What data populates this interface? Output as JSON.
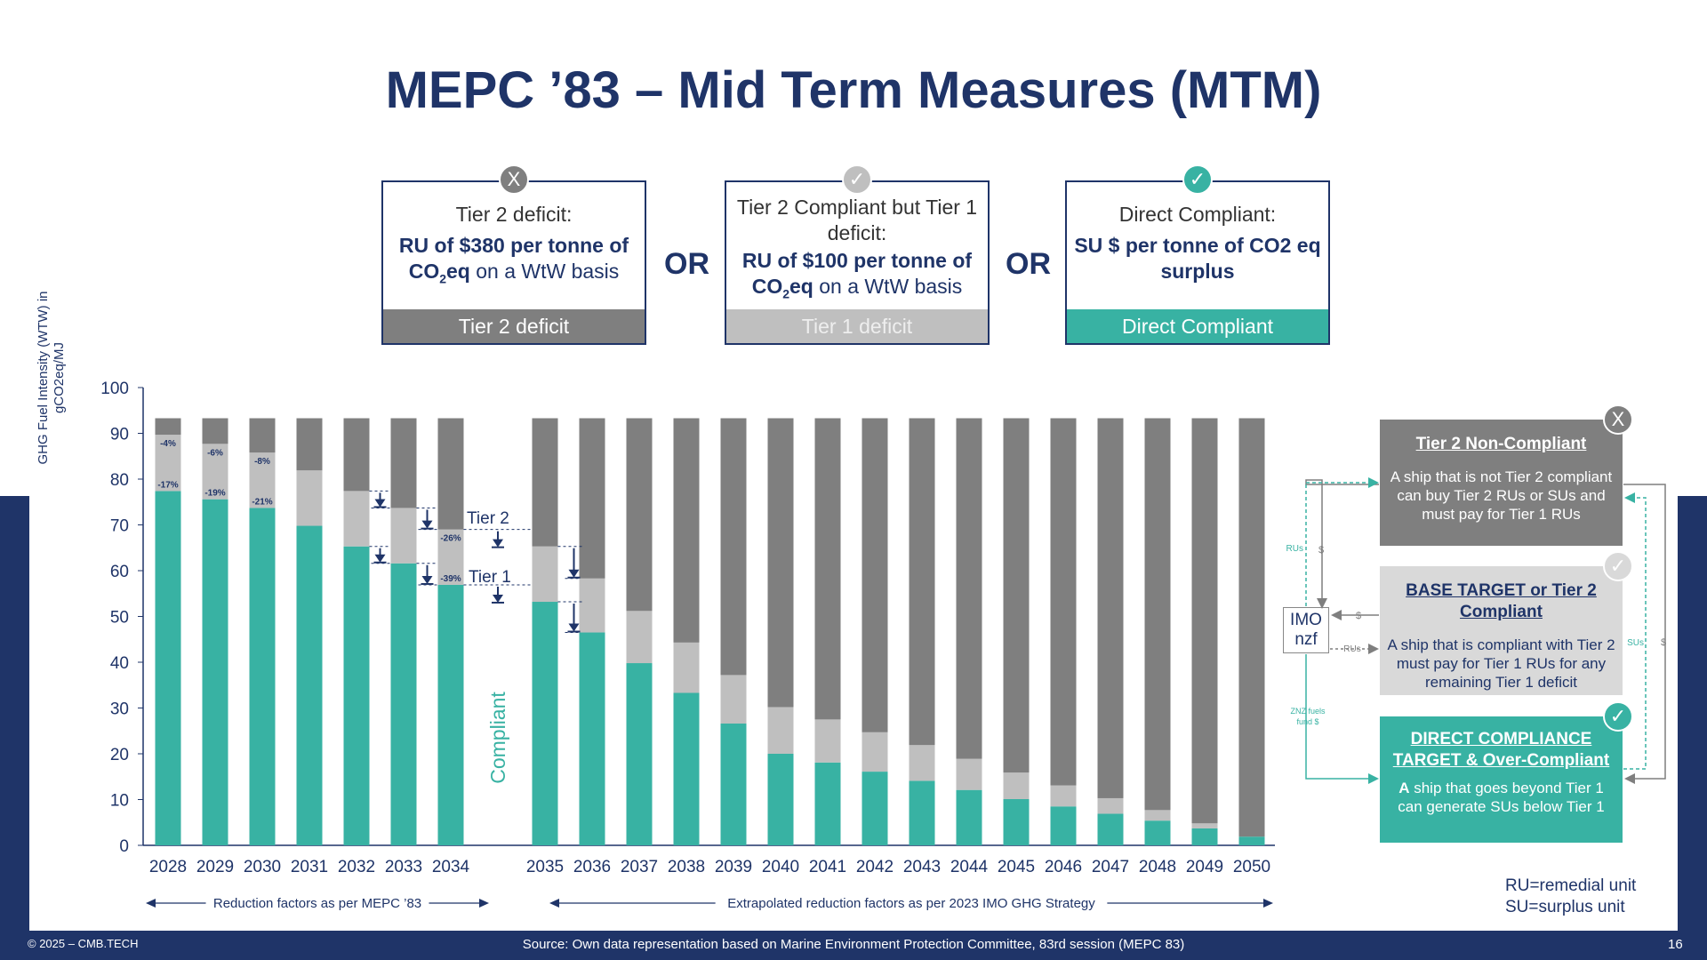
{
  "title": "MEPC ’83 – Mid Term Measures (MTM)",
  "colors": {
    "navy": "#1f3468",
    "teal": "#38b2a3",
    "light_grey": "#bfbfbf",
    "dark_grey": "#7f7f7f"
  },
  "options": [
    {
      "badge": "X",
      "head": "Tier 2 deficit:",
      "body_bold": "RU of $380 per tonne of CO",
      "body_sub": "2",
      "body_bold2": "eq",
      "body_rest": " on a WtW basis",
      "footer": "Tier 2 deficit"
    },
    {
      "badge": "✓",
      "head": "Tier 2 Compliant but Tier 1 deficit:",
      "body_bold": "RU of $100 per tonne of CO",
      "body_sub": "2",
      "body_bold2": "eq",
      "body_rest": " on a WtW basis",
      "footer": "Tier 1 deficit"
    },
    {
      "badge": "✓",
      "head": "Direct Compliant:",
      "body_bold": "SU $ per tonne of CO2 eq surplus",
      "body_sub": "",
      "body_bold2": "",
      "body_rest": "",
      "footer": "Direct Compliant"
    }
  ],
  "or_label": "OR",
  "chart_data": {
    "type": "bar",
    "stacked": true,
    "ylabel": "GHG Fuel Intensity (WTW) in gCO2eq/MJ",
    "ylim": [
      0,
      100
    ],
    "yticks": [
      0,
      10,
      20,
      30,
      40,
      50,
      60,
      70,
      80,
      90,
      100
    ],
    "categories": [
      "2028",
      "2029",
      "2030",
      "2031",
      "2032",
      "2033",
      "2034",
      "2035",
      "2036",
      "2037",
      "2038",
      "2039",
      "2040",
      "2041",
      "2042",
      "2043",
      "2044",
      "2045",
      "2046",
      "2047",
      "2048",
      "2049",
      "2050"
    ],
    "baseline": 93.3,
    "tier1_reduction_labels": [
      "-4%",
      "-6%",
      "-8%",
      "",
      "",
      "",
      "-26%"
    ],
    "tier2_reduction_labels": [
      "-17%",
      "-19%",
      "-21%",
      "",
      "",
      "",
      "-39%"
    ],
    "series": [
      {
        "name": "Compliant",
        "values": [
          77.4,
          75.6,
          73.7,
          69.8,
          65.3,
          61.6,
          56.9,
          53.2,
          46.5,
          39.8,
          33.3,
          26.6,
          20.0,
          18.1,
          16.1,
          14.1,
          12.1,
          10.1,
          8.5,
          6.9,
          5.4,
          3.7,
          1.9
        ]
      },
      {
        "name": "Tier 1 deficit",
        "values": [
          12.3,
          12.1,
          12.1,
          12.1,
          12.1,
          12.1,
          12.1,
          12.1,
          11.8,
          11.4,
          11.0,
          10.6,
          10.2,
          9.4,
          8.6,
          7.8,
          6.8,
          5.8,
          4.6,
          3.4,
          2.3,
          1.1,
          0
        ]
      },
      {
        "name": "Tier 2 deficit",
        "values": [
          3.6,
          5.6,
          7.5,
          11.4,
          15.9,
          19.6,
          24.3,
          28.0,
          35.0,
          42.1,
          49.0,
          56.1,
          63.1,
          65.8,
          68.6,
          71.4,
          74.4,
          77.4,
          80.2,
          83.0,
          85.6,
          88.5,
          91.4
        ]
      }
    ],
    "annotations": {
      "tier2": "Tier 2",
      "tier1": "Tier 1",
      "compliant": "Compliant"
    },
    "range_labels": [
      "Reduction factors as per MEPC ’83",
      "Extrapolated reduction factors as per 2023 IMO GHG Strategy"
    ]
  },
  "legend": [
    {
      "badge": "X",
      "title": "Tier 2 Non-Compliant",
      "text": "A ship that is not Tier 2 compliant can buy Tier 2 RUs or SUs and must pay for Tier 1 RUs"
    },
    {
      "badge": "✓",
      "title": "BASE TARGET or Tier 2 Compliant",
      "text": "A ship that is compliant with Tier 2 must pay for Tier 1 RUs for any remaining Tier 1 deficit"
    },
    {
      "badge": "✓",
      "title": "DIRECT COMPLIANCE TARGET & Over-Compliant",
      "text_bold": "A",
      "text": " ship that goes beyond Tier 1 can generate SUs below Tier 1"
    }
  ],
  "flow": {
    "imo_line1": "IMO",
    "imo_line2": "nzf",
    "rus": "RUs",
    "dollar": "$",
    "sus": "SUs",
    "znz": "ZNZ fuels fund $"
  },
  "definitions": [
    "RU=remedial unit",
    "SU=surplus unit"
  ],
  "footer": {
    "copyright": "© 2025 – CMB.TECH",
    "source": "Source: Own data representation based on Marine Environment Protection Committee, 83rd session (MEPC 83)",
    "page": "16"
  }
}
